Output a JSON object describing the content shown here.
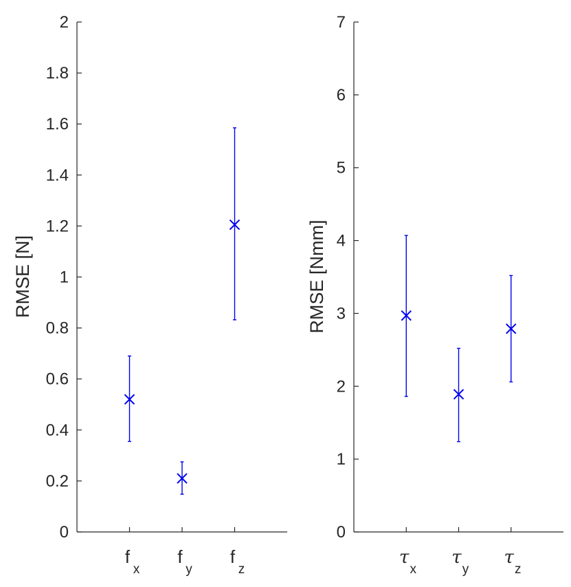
{
  "chart_data": [
    {
      "type": "scatter",
      "ylabel": "RMSE [N]",
      "ylim": [
        0,
        2
      ],
      "yticks": [
        "0",
        "0.2",
        "0.4",
        "0.6",
        "0.8",
        "1",
        "1.2",
        "1.4",
        "1.6",
        "1.8",
        "2"
      ],
      "xlim": [
        0,
        4
      ],
      "categories": [
        {
          "main": "f",
          "sub": "x"
        },
        {
          "main": "f",
          "sub": "y"
        },
        {
          "main": "f",
          "sub": "z"
        }
      ],
      "values": [
        0.52,
        0.21,
        1.205
      ],
      "lower": [
        0.355,
        0.148,
        0.832
      ],
      "upper": [
        0.69,
        0.275,
        1.585
      ],
      "marker": "x",
      "color": "#0000ee"
    },
    {
      "type": "scatter",
      "ylabel": "RMSE [Nmm]",
      "ylim": [
        0,
        7
      ],
      "yticks": [
        "0",
        "1",
        "2",
        "3",
        "4",
        "5",
        "6",
        "7"
      ],
      "xlim": [
        0,
        4
      ],
      "categories": [
        {
          "main": "τ",
          "sub": "x"
        },
        {
          "main": "τ",
          "sub": "y"
        },
        {
          "main": "τ",
          "sub": "z"
        }
      ],
      "values": [
        2.97,
        1.89,
        2.79
      ],
      "lower": [
        1.86,
        1.24,
        2.06
      ],
      "upper": [
        4.07,
        2.52,
        3.52
      ],
      "marker": "x",
      "color": "#0000ee"
    }
  ]
}
